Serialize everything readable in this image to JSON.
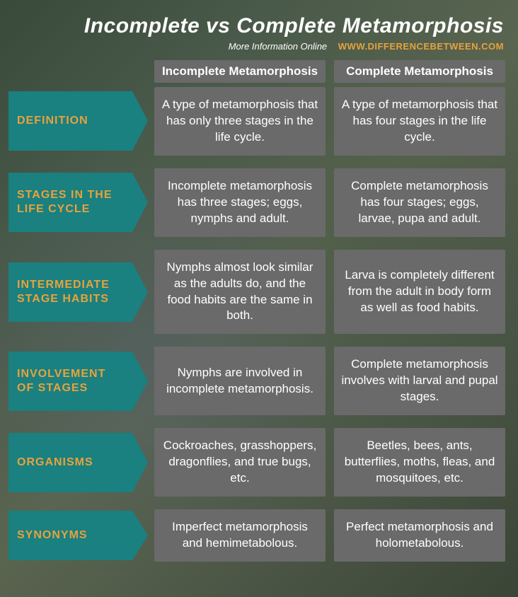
{
  "title": "Incomplete vs Complete Metamorphosis",
  "subtitle": {
    "more": "More Information  Online",
    "site": "WWW.DIFFERENCEBETWEEN.COM"
  },
  "columns": {
    "left": "Incomplete Metamorphosis",
    "right": "Complete Metamorphosis"
  },
  "rows": [
    {
      "label": "DEFINITION",
      "left": "A type of metamorphosis that has only three stages in the life cycle.",
      "right": "A type of metamorphosis that has four stages in the life cycle.",
      "label_height": 84
    },
    {
      "label": "STAGES IN THE LIFE CYCLE",
      "left": "Incomplete metamorphosis has three stages; eggs, nymphs and adult.",
      "right": "Complete metamorphosis has four stages; eggs, larvae, pupa and adult.",
      "label_height": 84
    },
    {
      "label": "INTERMEDIATE STAGE HABITS",
      "left": "Nymphs almost look similar as the adults do, and the food habits are the same in both.",
      "right": "Larva is completely different from the adult in body form as well as food habits.",
      "label_height": 84
    },
    {
      "label": "INVOLVEMENT OF STAGES",
      "left": "Nymphs are involved in incomplete metamorphosis.",
      "right": "Complete metamorphosis involves with larval and pupal stages.",
      "label_height": 84
    },
    {
      "label": "ORGANISMS",
      "left": "Cockroaches, grasshoppers, dragonflies, and true bugs, etc.",
      "right": "Beetles, bees, ants, butterflies, moths, fleas, and mosquitoes, etc.",
      "label_height": 84
    },
    {
      "label": "SYNONYMS",
      "left": "Imperfect metamorphosis and hemimetabolous.",
      "right": "Perfect metamorphosis and holometabolous.",
      "label_height": 70
    }
  ],
  "colors": {
    "label_bg": "#1a8080",
    "label_text": "#e8a23c",
    "cell_bg": "#6a6a6a",
    "cell_text": "#ffffff",
    "title_text": "#ffffff"
  }
}
